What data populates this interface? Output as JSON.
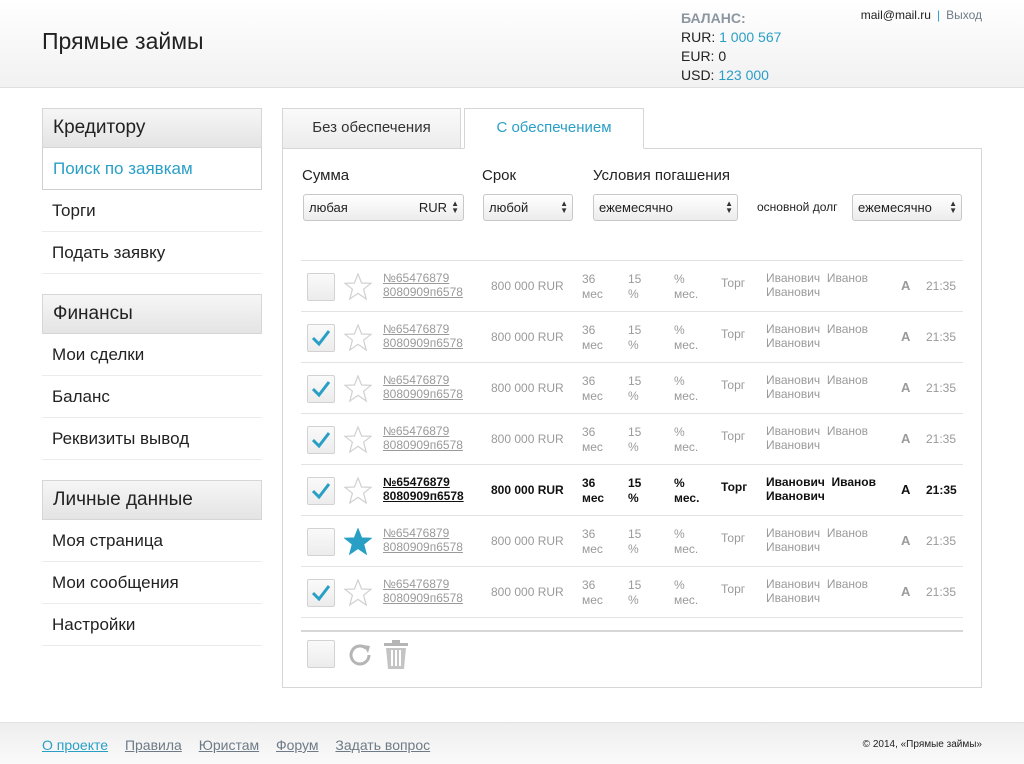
{
  "header": {
    "logo": "Прямые займы",
    "balance_title": "БАЛАНС:",
    "balances": [
      {
        "currency": "RUR:",
        "value": "1 000 567",
        "accent": true
      },
      {
        "currency": "EUR:",
        "value": "0",
        "accent": false
      },
      {
        "currency": "USD:",
        "value": "123 000",
        "accent": true
      }
    ],
    "email": "mail@mail.ru",
    "separator": "|",
    "logout": "Выход"
  },
  "sidebar": [
    {
      "title": "Кредитору",
      "items": [
        {
          "label": "Поиск по заявкам",
          "active": true
        },
        {
          "label": "Торги",
          "active": false
        },
        {
          "label": "Подать заявку",
          "active": false
        }
      ]
    },
    {
      "title": "Финансы",
      "items": [
        {
          "label": "Мои сделки",
          "active": false
        },
        {
          "label": "Баланс",
          "active": false
        },
        {
          "label": "Реквизиты вывод",
          "active": false
        }
      ]
    },
    {
      "title": "Личные данные",
      "items": [
        {
          "label": "Моя страница",
          "active": false
        },
        {
          "label": "Мои сообщения",
          "active": false
        },
        {
          "label": "Настройки",
          "active": false
        }
      ]
    }
  ],
  "tabs": [
    {
      "label": "Без обеспечения",
      "active": false
    },
    {
      "label": "С обеспечением",
      "active": true
    }
  ],
  "filters": {
    "sum_label": "Сумма",
    "sum_value": "любая",
    "sum_unit": "RUR",
    "term_label": "Срок",
    "term_value": "любой",
    "repay_label": "Условия погашения",
    "repay_value": "ежемесячно",
    "principal_label": "основной долг",
    "principal_value": "ежемесячно"
  },
  "rows": [
    {
      "checked": false,
      "starred": false,
      "bold": false,
      "num1": "№65476879",
      "num2": "8080909п6578",
      "sum": "800 000 RUR",
      "term1": "36",
      "term2": "мес",
      "pct1": "15",
      "pct2": "%",
      "pm1": "%",
      "pm2": "мес.",
      "type": "Торг",
      "name1": "Иванович  Иванов",
      "name2": "Иванович",
      "grade": "A",
      "time": "21:35"
    },
    {
      "checked": true,
      "starred": false,
      "bold": false,
      "num1": "№65476879",
      "num2": "8080909п6578",
      "sum": "800 000 RUR",
      "term1": "36",
      "term2": "мес",
      "pct1": "15",
      "pct2": "%",
      "pm1": "%",
      "pm2": "мес.",
      "type": "Торг",
      "name1": "Иванович  Иванов",
      "name2": "Иванович",
      "grade": "A",
      "time": "21:35"
    },
    {
      "checked": true,
      "starred": false,
      "bold": false,
      "num1": "№65476879",
      "num2": "8080909п6578",
      "sum": "800 000 RUR",
      "term1": "36",
      "term2": "мес",
      "pct1": "15",
      "pct2": "%",
      "pm1": "%",
      "pm2": "мес.",
      "type": "Торг",
      "name1": "Иванович  Иванов",
      "name2": "Иванович",
      "grade": "A",
      "time": "21:35"
    },
    {
      "checked": true,
      "starred": false,
      "bold": false,
      "num1": "№65476879",
      "num2": "8080909п6578",
      "sum": "800 000 RUR",
      "term1": "36",
      "term2": "мес",
      "pct1": "15",
      "pct2": "%",
      "pm1": "%",
      "pm2": "мес.",
      "type": "Торг",
      "name1": "Иванович  Иванов",
      "name2": "Иванович",
      "grade": "A",
      "time": "21:35"
    },
    {
      "checked": true,
      "starred": false,
      "bold": true,
      "num1": "№65476879",
      "num2": "8080909п6578",
      "sum": "800 000 RUR",
      "term1": "36",
      "term2": "мес",
      "pct1": "15",
      "pct2": "%",
      "pm1": "%",
      "pm2": "мес.",
      "type": "Торг",
      "name1": "Иванович  Иванов",
      "name2": "Иванович",
      "grade": "A",
      "time": "21:35"
    },
    {
      "checked": false,
      "starred": true,
      "bold": false,
      "num1": "№65476879",
      "num2": "8080909п6578",
      "sum": "800 000 RUR",
      "term1": "36",
      "term2": "мес",
      "pct1": "15",
      "pct2": "%",
      "pm1": "%",
      "pm2": "мес.",
      "type": "Торг",
      "name1": "Иванович  Иванов",
      "name2": "Иванович",
      "grade": "A",
      "time": "21:35"
    },
    {
      "checked": true,
      "starred": false,
      "bold": false,
      "num1": "№65476879",
      "num2": "8080909п6578",
      "sum": "800 000 RUR",
      "term1": "36",
      "term2": "мес",
      "pct1": "15",
      "pct2": "%",
      "pm1": "%",
      "pm2": "мес.",
      "type": "Торг",
      "name1": "Иванович  Иванов",
      "name2": "Иванович",
      "grade": "A",
      "time": "21:35"
    }
  ],
  "icons": {
    "check": "checkmark-icon",
    "star": "star-icon",
    "refresh": "refresh-icon",
    "trash": "trash-icon"
  },
  "colors": {
    "accent": "#2a9fc6",
    "star_active": "#2a9fc6",
    "star_inactive": "#d0d0d0"
  },
  "footer": {
    "links": [
      "О проекте",
      "Правила",
      "Юристам",
      "Форум",
      "Задать вопрос"
    ],
    "copyright": "© 2014, «Прямые займы»"
  }
}
